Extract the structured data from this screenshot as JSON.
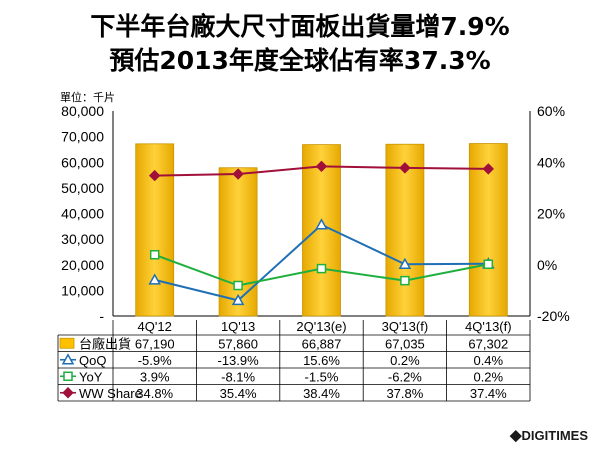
{
  "chart_data": {
    "type": "bar",
    "title_line1": "下半年台廠大尺寸面板出貨量增7.9%",
    "title_line2": "預估2013年度全球佔有率37.3%",
    "unit_label": "單位：千片",
    "categories": [
      "4Q'12",
      "1Q'13",
      "2Q'13(e)",
      "3Q'13(f)",
      "4Q'13(f)"
    ],
    "left_axis": {
      "ticks": [
        "-",
        "10,000",
        "20,000",
        "30,000",
        "40,000",
        "50,000",
        "60,000",
        "70,000",
        "80,000"
      ],
      "ylim": [
        0,
        80000
      ]
    },
    "right_axis": {
      "ticks": [
        "-20%",
        "0%",
        "20%",
        "40%",
        "60%"
      ],
      "ylim": [
        -20,
        60
      ]
    },
    "series": [
      {
        "name": "台廠出貨",
        "kind": "bar",
        "axis": "left",
        "color": "#FFC000",
        "values": [
          67190,
          57860,
          66887,
          67035,
          67302
        ],
        "labels": [
          "67,190",
          "57,860",
          "66,887",
          "67,035",
          "67,302"
        ]
      },
      {
        "name": "QoQ",
        "kind": "line",
        "axis": "right",
        "color": "#1F6FB5",
        "marker": "triangle",
        "values": [
          -5.9,
          -13.9,
          15.6,
          0.2,
          0.4
        ],
        "labels": [
          "-5.9%",
          "-13.9%",
          "15.6%",
          "0.2%",
          "0.4%"
        ]
      },
      {
        "name": "YoY",
        "kind": "line",
        "axis": "right",
        "color": "#1FAF3F",
        "marker": "square",
        "values": [
          3.9,
          -8.1,
          -1.5,
          -6.2,
          0.2
        ],
        "labels": [
          "3.9%",
          "-8.1%",
          "-1.5%",
          "-6.2%",
          "0.2%"
        ]
      },
      {
        "name": "WW Share",
        "kind": "line",
        "axis": "right",
        "color": "#A0103A",
        "marker": "diamond",
        "values": [
          34.8,
          35.4,
          38.4,
          37.8,
          37.4
        ],
        "labels": [
          "34.8%",
          "35.4%",
          "38.4%",
          "37.8%",
          "37.4%"
        ]
      }
    ],
    "grid": false,
    "legend": "data-table-below"
  },
  "brand": {
    "prefix": "◆",
    "text": "DIGITIMES"
  }
}
